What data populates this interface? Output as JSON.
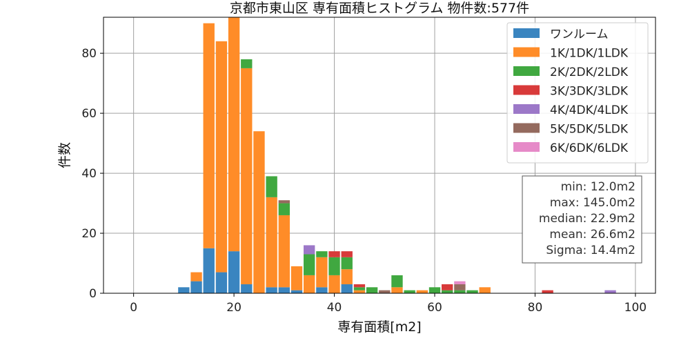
{
  "chart_data": {
    "type": "bar",
    "stacked": true,
    "title": "京都市東山区 専有面積ヒストグラム 物件数:577件",
    "xlabel": "専有面積[m2]",
    "ylabel": "件数",
    "xlim": [
      -6,
      104
    ],
    "ylim": [
      0,
      92
    ],
    "bin_width": 2.5,
    "x_ticks": [
      0,
      20,
      40,
      60,
      80,
      100
    ],
    "y_ticks": [
      0,
      20,
      40,
      60,
      80
    ],
    "grid": true,
    "legend_position": "top-right",
    "x": [
      10,
      12.5,
      15,
      17.5,
      20,
      22.5,
      25,
      27.5,
      30,
      32.5,
      35,
      37.5,
      40,
      42.5,
      45,
      47.5,
      50,
      52.5,
      55,
      57.5,
      60,
      62.5,
      65,
      67.5,
      70,
      82.5,
      95
    ],
    "series": [
      {
        "name": "ワンルーム",
        "color": "#3a85c0",
        "values": [
          2,
          4,
          15,
          7,
          14,
          3,
          0,
          2,
          2,
          1,
          0,
          2,
          0,
          3,
          0,
          0,
          0,
          0,
          0,
          0,
          0,
          0,
          0,
          0,
          0,
          0,
          0
        ]
      },
      {
        "name": "1K/1DK/1LDK",
        "color": "#ff8c28",
        "values": [
          0,
          3,
          75,
          77,
          78,
          72,
          54,
          30,
          24,
          8,
          6,
          10,
          6,
          5,
          1,
          0,
          0,
          2,
          0,
          1,
          0,
          0,
          0,
          0,
          2,
          0,
          0
        ]
      },
      {
        "name": "2K/2DK/2LDK",
        "color": "#40a840",
        "values": [
          0,
          0,
          0,
          0,
          0,
          3,
          0,
          7,
          4,
          0,
          7,
          2,
          6,
          4,
          1,
          2,
          0,
          4,
          1,
          0,
          2,
          1,
          1,
          1,
          0,
          0,
          0
        ]
      },
      {
        "name": "3K/3DK/3LDK",
        "color": "#d83a3a",
        "values": [
          0,
          0,
          0,
          0,
          0,
          0,
          0,
          0,
          0,
          0,
          0,
          0,
          2,
          2,
          1,
          0,
          0,
          0,
          0,
          0,
          0,
          2,
          0,
          0,
          0,
          1,
          0
        ]
      },
      {
        "name": "4K/4DK/4LDK",
        "color": "#9c78c8",
        "values": [
          0,
          0,
          0,
          0,
          0,
          0,
          0,
          0,
          0,
          0,
          3,
          0,
          0,
          0,
          0,
          0,
          0,
          0,
          0,
          0,
          0,
          0,
          0,
          0,
          0,
          0,
          1
        ]
      },
      {
        "name": "5K/5DK/5LDK",
        "color": "#946a5e",
        "values": [
          0,
          0,
          0,
          0,
          0,
          0,
          0,
          0,
          1,
          0,
          0,
          0,
          0,
          0,
          0,
          0,
          1,
          0,
          0,
          0,
          0,
          0,
          2,
          0,
          0,
          0,
          0
        ]
      },
      {
        "name": "6K/6DK/6LDK",
        "color": "#e68ac8",
        "values": [
          0,
          0,
          0,
          0,
          0,
          0,
          0,
          0,
          0,
          0,
          0,
          0,
          0,
          0,
          0,
          0,
          0,
          0,
          0,
          0,
          0,
          0,
          1,
          0,
          0,
          0,
          0
        ]
      }
    ],
    "stats": {
      "min": "min: 12.0m2",
      "max": "max: 145.0m2",
      "median": "median: 22.9m2",
      "mean": "mean: 26.6m2",
      "sigma": "Sigma: 14.4m2"
    }
  }
}
